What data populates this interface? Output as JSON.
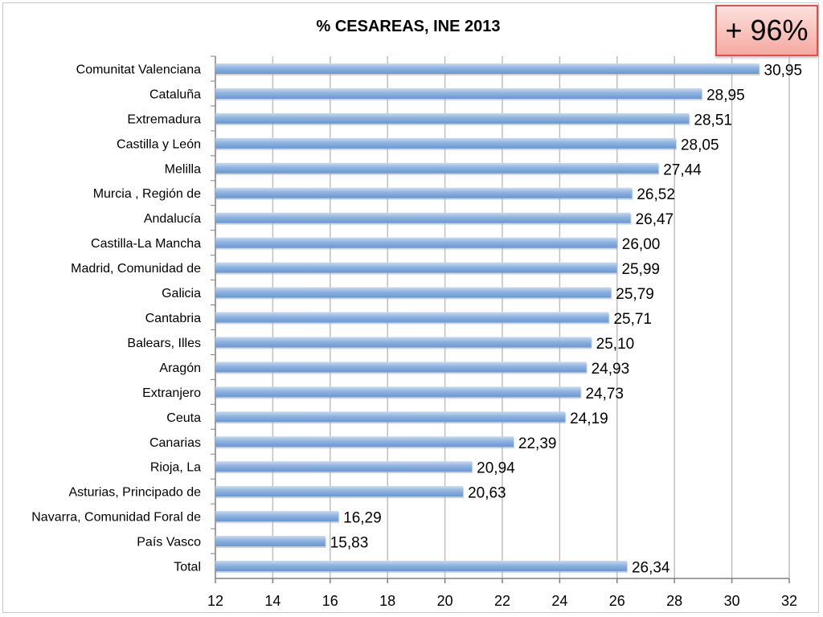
{
  "title": "% CESAREAS, INE 2013",
  "badge": "+ 96%",
  "chart_data": {
    "type": "bar",
    "orientation": "horizontal",
    "title": "% CESAREAS, INE 2013",
    "categories": [
      "Comunitat Valenciana",
      "Cataluña",
      "Extremadura",
      "Castilla y León",
      "Melilla",
      "Murcia , Región de",
      "Andalucía",
      "Castilla-La Mancha",
      "Madrid, Comunidad de",
      "Galicia",
      "Cantabria",
      "Balears, Illes",
      "Aragón",
      "Extranjero",
      "Ceuta",
      "Canarias",
      "Rioja, La",
      "Asturias, Principado de",
      "Navarra, Comunidad Foral de",
      "País Vasco",
      "Total"
    ],
    "values": [
      30.95,
      28.95,
      28.51,
      28.05,
      27.44,
      26.52,
      26.47,
      26.0,
      25.99,
      25.79,
      25.71,
      25.1,
      24.93,
      24.73,
      24.19,
      22.39,
      20.94,
      20.63,
      16.29,
      15.83,
      26.34
    ],
    "value_labels": [
      "30,95",
      "28,95",
      "28,51",
      "28,05",
      "27,44",
      "26,52",
      "26,47",
      "26,00",
      "25,99",
      "25,79",
      "25,71",
      "25,10",
      "24,93",
      "24,73",
      "24,19",
      "22,39",
      "20,94",
      "20,63",
      "16,29",
      "15,83",
      "26,34"
    ],
    "xlim": [
      12,
      32
    ],
    "xticks": [
      "12",
      "14",
      "16",
      "18",
      "20",
      "22",
      "24",
      "26",
      "28",
      "30",
      "32"
    ],
    "grid": "vertical",
    "bar_color": "#8db3e2"
  }
}
